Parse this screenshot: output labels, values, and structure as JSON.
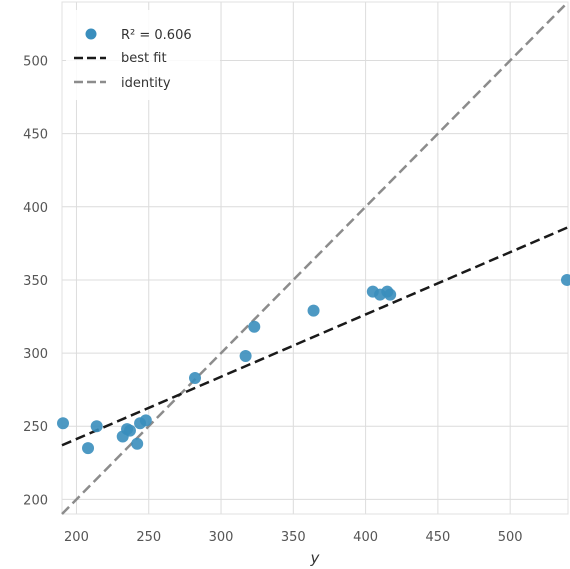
{
  "chart_data": {
    "type": "scatter",
    "xlabel": "y",
    "ylabel": "",
    "xlim": [
      190,
      540
    ],
    "ylim": [
      190,
      540
    ],
    "xticks": [
      200,
      250,
      300,
      350,
      400,
      450,
      500
    ],
    "yticks": [
      200,
      250,
      300,
      350,
      400,
      450,
      500
    ],
    "grid": true,
    "legend_position": "top-left",
    "points": [
      {
        "x": 190,
        "y": 252
      },
      {
        "x": 208,
        "y": 235
      },
      {
        "x": 214,
        "y": 250
      },
      {
        "x": 232,
        "y": 243
      },
      {
        "x": 235,
        "y": 248
      },
      {
        "x": 237,
        "y": 247
      },
      {
        "x": 242,
        "y": 238
      },
      {
        "x": 244,
        "y": 252
      },
      {
        "x": 248,
        "y": 254
      },
      {
        "x": 282,
        "y": 283
      },
      {
        "x": 317,
        "y": 298
      },
      {
        "x": 323,
        "y": 318
      },
      {
        "x": 364,
        "y": 329
      },
      {
        "x": 405,
        "y": 342
      },
      {
        "x": 410,
        "y": 340
      },
      {
        "x": 415,
        "y": 342
      },
      {
        "x": 417,
        "y": 340
      },
      {
        "x": 540,
        "y": 350
      }
    ],
    "best_fit": {
      "x": [
        190,
        540
      ],
      "y": [
        237,
        386
      ]
    },
    "identity": {
      "x": [
        190,
        540
      ],
      "y": [
        190,
        540
      ]
    },
    "legend": [
      {
        "label": "R² = 0.606",
        "kind": "marker",
        "color": "#3a8ebd"
      },
      {
        "label": "best fit",
        "kind": "line",
        "color": "#1a1a1a",
        "dash": true
      },
      {
        "label": "identity",
        "kind": "line",
        "color": "#8c8c8c",
        "dash": true
      }
    ],
    "colors": {
      "points": "#3a8ebd",
      "best_fit": "#1a1a1a",
      "identity": "#8c8c8c",
      "grid": "#dcdcdc"
    }
  }
}
